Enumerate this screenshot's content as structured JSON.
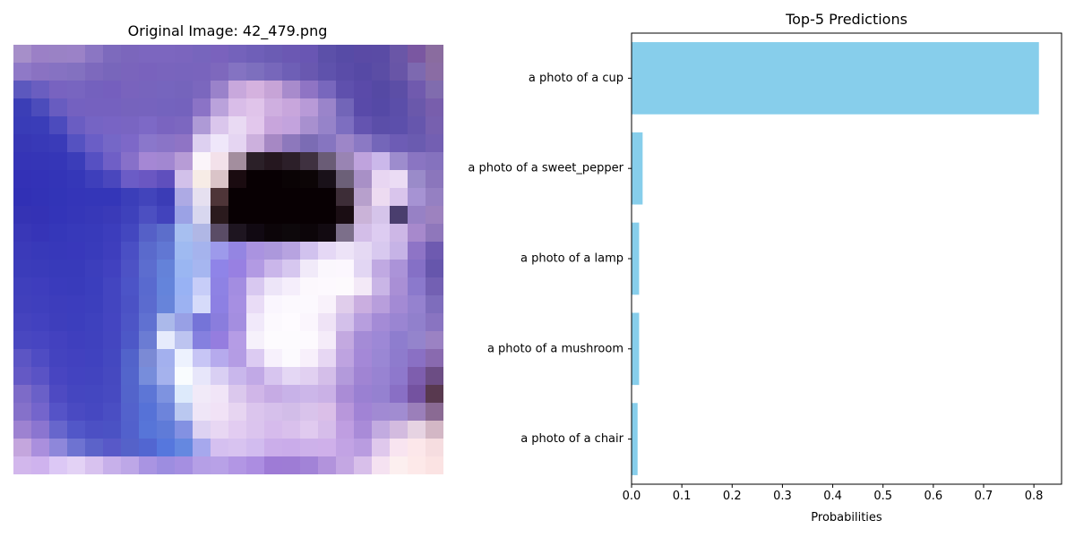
{
  "image_panel": {
    "title": "Original Image: 42_479.png",
    "pixels": [
      [
        "#a68fc9",
        "#9b80c6",
        "#9a82c5",
        "#9b82c7",
        "#8b76c3",
        "#7d6abd",
        "#7b66bc",
        "#7c66bf",
        "#7c66bf",
        "#7b65be",
        "#7765bd",
        "#7a62bd",
        "#7462bb",
        "#6f5fb8",
        "#6b5cb4",
        "#6b58b3",
        "#6956b3",
        "#5c50a9",
        "#574ba6",
        "#5a4aa5",
        "#5a4ba5",
        "#6a56a7",
        "#7a57a1",
        "#8a6c9f"
      ],
      [
        "#8f79c7",
        "#8a72c2",
        "#8672c2",
        "#8371c0",
        "#7d69bd",
        "#7866bb",
        "#7a64bc",
        "#7962bd",
        "#7964bd",
        "#7864bd",
        "#7964bd",
        "#7e68bd",
        "#8473c2",
        "#7d6fbe",
        "#7767bb",
        "#6e5fb6",
        "#6958b0",
        "#5f52ac",
        "#5a4ca8",
        "#5649a5",
        "#5b4da5",
        "#6855a7",
        "#7d69b0",
        "#8a6ca4"
      ],
      [
        "#5c58be",
        "#6a5ec0",
        "#7863c0",
        "#7865c0",
        "#7461be",
        "#755fbe",
        "#7963bd",
        "#7764bd",
        "#7665be",
        "#7564bc",
        "#7b67be",
        "#9a82ca",
        "#c8a8dc",
        "#d5b2df",
        "#c7a4d7",
        "#a88bcc",
        "#8f74c4",
        "#7867bd",
        "#5f50ad",
        "#5a4aa9",
        "#5549a4",
        "#5c4ea6",
        "#705aae",
        "#806cae"
      ],
      [
        "#3b3eb6",
        "#4c4cbb",
        "#685cc0",
        "#7461c0",
        "#7561bf",
        "#7561bf",
        "#7663bd",
        "#7663be",
        "#7463be",
        "#7462bd",
        "#8b73c6",
        "#baa2db",
        "#d9bde8",
        "#e0c4ea",
        "#cfafe0",
        "#c8a6dc",
        "#b89ad7",
        "#9a84ca",
        "#7265b8",
        "#594aa9",
        "#5549a6",
        "#5b4ea9",
        "#6a58ab",
        "#785eac"
      ],
      [
        "#393cb7",
        "#3a3db8",
        "#4c4bbd",
        "#6a5dc2",
        "#7564c4",
        "#7864c4",
        "#7965c2",
        "#7d69c6",
        "#7a64c0",
        "#7c67c0",
        "#ae9ad6",
        "#dac6ec",
        "#e9daf3",
        "#e2c7ec",
        "#c8a5dc",
        "#c3a3dd",
        "#a890cf",
        "#9683c9",
        "#7d6ec0",
        "#6454b0",
        "#5b4ea9",
        "#5c4fab",
        "#6656ad",
        "#7760af"
      ],
      [
        "#3737b5",
        "#3839b7",
        "#3a3bb8",
        "#5552c1",
        "#6a5ec6",
        "#7567c7",
        "#7d68c8",
        "#8a77cb",
        "#8a74c7",
        "#8f74c5",
        "#ddd0f0",
        "#efe7fa",
        "#e5d5f2",
        "#ccb0dd",
        "#a688c4",
        "#8d78bc",
        "#7b6cb4",
        "#8675c0",
        "#9d86c8",
        "#8b79c4",
        "#7466b9",
        "#6d5cb5",
        "#6a5bb0",
        "#735fb2"
      ],
      [
        "#3534b6",
        "#3535b6",
        "#3536b7",
        "#3b3db9",
        "#5650c2",
        "#6f5fc6",
        "#8770c9",
        "#a587d4",
        "#a287d1",
        "#b79cd6",
        "#fbf5fa",
        "#f3e1ea",
        "#a38e9e",
        "#2b2028",
        "#25171f",
        "#2c1f29",
        "#3f3140",
        "#6a5c76",
        "#9984b3",
        "#bfa3dd",
        "#cbb8ea",
        "#9d8ccd",
        "#8a75c2",
        "#8572be"
      ],
      [
        "#3331b6",
        "#3332b7",
        "#3334b7",
        "#3537b8",
        "#3e3fbb",
        "#4a47bd",
        "#6b5cc6",
        "#6a57c2",
        "#5f4fbd",
        "#d2c1ea",
        "#f7ece6",
        "#dac4c8",
        "#1a0b10",
        "#080003",
        "#080003",
        "#0a0305",
        "#0c0506",
        "#191119",
        "#6c6078",
        "#a890c6",
        "#e8d6f2",
        "#ebdcf4",
        "#9a8bc9",
        "#8b76bc"
      ],
      [
        "#3130b5",
        "#3232b6",
        "#3234b7",
        "#3435b8",
        "#3436b8",
        "#3436b8",
        "#3b3eb9",
        "#4244bb",
        "#3b3cb6",
        "#adaae4",
        "#e6e0f0",
        "#4e3538",
        "#080003",
        "#080003",
        "#080003",
        "#080003",
        "#080003",
        "#080003",
        "#3d2d37",
        "#b7a0cc",
        "#eddbf1",
        "#d9c5ec",
        "#a693d3",
        "#9580c2"
      ],
      [
        "#3533b4",
        "#3432b5",
        "#3334b8",
        "#3536b8",
        "#3738b8",
        "#3a3ab8",
        "#3e41bb",
        "#4c4fc1",
        "#4243bc",
        "#9ba2e5",
        "#d8d7ef",
        "#2a1a1d",
        "#080003",
        "#080003",
        "#080003",
        "#080003",
        "#080003",
        "#080003",
        "#1a0d13",
        "#cab3d8",
        "#d5c4ea",
        "#4a3e6e",
        "#9781c5",
        "#9d82bf"
      ],
      [
        "#3937b7",
        "#3634b7",
        "#3537b9",
        "#3739ba",
        "#383aba",
        "#3c3dbc",
        "#4347bf",
        "#5560c7",
        "#5c6ecb",
        "#a7bff0",
        "#b0b7e5",
        "#5a4c66",
        "#1e1520",
        "#110912",
        "#0c0509",
        "#0d080b",
        "#0c0509",
        "#120a11",
        "#7c6f8a",
        "#d3bee8",
        "#ddccf1",
        "#cdb7e6",
        "#a789cc",
        "#8f77bb"
      ],
      [
        "#3b3ab9",
        "#3839b9",
        "#3738ba",
        "#3838bb",
        "#393bbb",
        "#3e3ebd",
        "#4a4fc4",
        "#5a6acc",
        "#6177d3",
        "#9fbaf1",
        "#a5b3ed",
        "#9d9aeb",
        "#9485e2",
        "#aa93e0",
        "#ac98dc",
        "#b7a3e0",
        "#d1c2ee",
        "#e5d8f5",
        "#ede3f7",
        "#e5d9f3",
        "#d8c9ef",
        "#c6b3e6",
        "#8e74c6",
        "#6e5ab0"
      ],
      [
        "#3b3cba",
        "#3a3bba",
        "#383aba",
        "#383aba",
        "#3c3ebc",
        "#4141bf",
        "#4d52c5",
        "#5c6dcf",
        "#6482d9",
        "#9ab6f2",
        "#a6b6f0",
        "#8f84e8",
        "#9880e2",
        "#b29ae3",
        "#cab6ea",
        "#d6c7ef",
        "#f1eaf9",
        "#fbf7fd",
        "#fcf7fe",
        "#e2d6f3",
        "#c0a9e2",
        "#ab93d8",
        "#8570c6",
        "#6656ac"
      ],
      [
        "#3f3fbc",
        "#3e3dbd",
        "#3a3bbc",
        "#393bbb",
        "#3b3ebd",
        "#4345c0",
        "#4c54c7",
        "#596acf",
        "#6484db",
        "#98b2f4",
        "#c7cdf8",
        "#8e82e4",
        "#a38de1",
        "#d8c8f0",
        "#ede5f8",
        "#f5eefb",
        "#fcf8fd",
        "#fdf9fe",
        "#fdfafd",
        "#f3e9f7",
        "#c9b5e6",
        "#a98fd5",
        "#8b79cc",
        "#7360b3"
      ],
      [
        "#4140bc",
        "#3f3fbd",
        "#3d3dbc",
        "#3c3dbd",
        "#3c3fbd",
        "#4345c0",
        "#4b52c5",
        "#5b6bcf",
        "#6784da",
        "#9cb2f2",
        "#d6dbfa",
        "#8d80e3",
        "#a68fe2",
        "#e9dcf6",
        "#faf6fe",
        "#fcf9fe",
        "#fcf9fe",
        "#f9f2fb",
        "#e0cdeb",
        "#caaee0",
        "#b89edc",
        "#a38ad4",
        "#9582cf",
        "#7e6dbc"
      ],
      [
        "#4543be",
        "#4241bf",
        "#3e3ebc",
        "#3c3ebd",
        "#3e41be",
        "#4445c1",
        "#4d55c6",
        "#6071d1",
        "#abb9ea",
        "#98a0e5",
        "#7574d8",
        "#8a7ddd",
        "#a48ee0",
        "#f1e9fa",
        "#fcf9fe",
        "#fefbff",
        "#fbf6fd",
        "#efe3f6",
        "#d3c0ea",
        "#b79ede",
        "#a48bd6",
        "#9a85d2",
        "#9180cc",
        "#8974c1"
      ],
      [
        "#4947c0",
        "#4745c1",
        "#4341bf",
        "#3f3fbe",
        "#3f41be",
        "#4446c0",
        "#4d58c7",
        "#6b7cd3",
        "#e6ebfc",
        "#bdc4f0",
        "#8580df",
        "#957ddf",
        "#b59ce5",
        "#f6f1fb",
        "#fdfbfe",
        "#fdfbfe",
        "#fdfafe",
        "#f5ecf9",
        "#c3a9e0",
        "#a48bd6",
        "#9d88d6",
        "#8e7dce",
        "#9484cc",
        "#9b82c3"
      ],
      [
        "#5c55c4",
        "#4f4cc3",
        "#4443bf",
        "#4241bf",
        "#4042bf",
        "#4448c0",
        "#5263ca",
        "#7b8ad5",
        "#a3b0ee",
        "#edf2fe",
        "#c7c5f5",
        "#b6aaed",
        "#b49ce4",
        "#dccbf2",
        "#f7f1fc",
        "#fcfafe",
        "#f8f0fb",
        "#e7d7f3",
        "#bea3e0",
        "#a488d7",
        "#9a87d4",
        "#8e7bcd",
        "#8a70c4",
        "#896aaf"
      ],
      [
        "#6459c5",
        "#5a53c5",
        "#4845c1",
        "#4343c0",
        "#4244bf",
        "#4649c0",
        "#5365cb",
        "#778ddb",
        "#a5b2ed",
        "#f9fcfe",
        "#e7e6fa",
        "#d9cff3",
        "#c9b7ec",
        "#c1a9e6",
        "#d7c5ef",
        "#e4d7f4",
        "#e1d0f1",
        "#d4bee9",
        "#b39adb",
        "#a084d3",
        "#9883d2",
        "#8e78cc",
        "#7e5eae",
        "#6c4d84"
      ],
      [
        "#7d6bc8",
        "#6a60c8",
        "#4e4ac2",
        "#4546c0",
        "#4447c0",
        "#474ac1",
        "#5364cb",
        "#5d76d6",
        "#7e93e0",
        "#ddeafb",
        "#f1eaf8",
        "#f1e5f7",
        "#dbc8ed",
        "#d0b6e8",
        "#c6abe4",
        "#c8b2e8",
        "#ccb6e9",
        "#cab1e6",
        "#aa8cd6",
        "#9a80d2",
        "#9581d0",
        "#896fc5",
        "#7452a0",
        "#58394f"
      ],
      [
        "#8571ca",
        "#7465cc",
        "#5553c7",
        "#4a4ac2",
        "#4648c1",
        "#4a4ec3",
        "#5362cc",
        "#5672d7",
        "#6d84db",
        "#bac8f0",
        "#efe6f7",
        "#f1e2f6",
        "#e7d5f1",
        "#dbc5ed",
        "#d6c0eb",
        "#d2bde8",
        "#d9c3eb",
        "#dbbfe8",
        "#b897db",
        "#a183d5",
        "#a18ad3",
        "#a18cd1",
        "#9b7fba",
        "#8a6a93"
      ],
      [
        "#9d82d1",
        "#8b75d0",
        "#6766cc",
        "#5257c8",
        "#4c50c4",
        "#4b52c4",
        "#5261cc",
        "#5775d8",
        "#5f7bd8",
        "#8391e2",
        "#ddd2f2",
        "#e8d7f3",
        "#e2ccf1",
        "#dbc4ee",
        "#d6bbec",
        "#d9c0ec",
        "#e0caef",
        "#d6bdea",
        "#bf9ee1",
        "#a98bd8",
        "#c2abe0",
        "#d3bbdf",
        "#e6d3e2",
        "#d3b7c5"
      ],
      [
        "#c4a6dd",
        "#aa8fdd",
        "#8e87da",
        "#6e73d1",
        "#5c63c9",
        "#5859c8",
        "#5562c9",
        "#5266d1",
        "#5677dd",
        "#6588e0",
        "#a6a8ed",
        "#d5c0f0",
        "#d8c3f0",
        "#d2bcef",
        "#cbaeea",
        "#caacea",
        "#cdb1ea",
        "#cfb0ea",
        "#c2a3e4",
        "#b99ce0",
        "#dfc8ec",
        "#f8e4f0",
        "#fce7ea",
        "#f6dde0"
      ],
      [
        "#d2b7ec",
        "#cfb3ee",
        "#dcc8f5",
        "#e3d2f5",
        "#d8c2ef",
        "#c7b0ea",
        "#bda7e7",
        "#a994e2",
        "#9d8de0",
        "#a58fe1",
        "#b59fe6",
        "#b8a1e7",
        "#b296e4",
        "#ac8de1",
        "#9e7bd6",
        "#9e7cd5",
        "#a283d7",
        "#b293dc",
        "#c4a7e3",
        "#d8bfea",
        "#f5e2f1",
        "#fcefef",
        "#fde9e9",
        "#fbe3e3"
      ]
    ]
  },
  "chart_data": {
    "type": "bar",
    "orientation": "horizontal",
    "title": "Top-5 Predictions",
    "xlabel": "Probabilities",
    "ylabel": "",
    "categories": [
      "a photo of a cup",
      "a photo of a sweet_pepper",
      "a photo of a lamp",
      "a photo of a mushroom",
      "a photo of a chair"
    ],
    "values": [
      0.81,
      0.022,
      0.015,
      0.015,
      0.012
    ],
    "xlim": [
      0,
      0.855
    ],
    "xticks": [
      "0.0",
      "0.1",
      "0.2",
      "0.3",
      "0.4",
      "0.5",
      "0.6",
      "0.7",
      "0.8"
    ],
    "bar_color": "#87ceeb",
    "grid": false
  }
}
